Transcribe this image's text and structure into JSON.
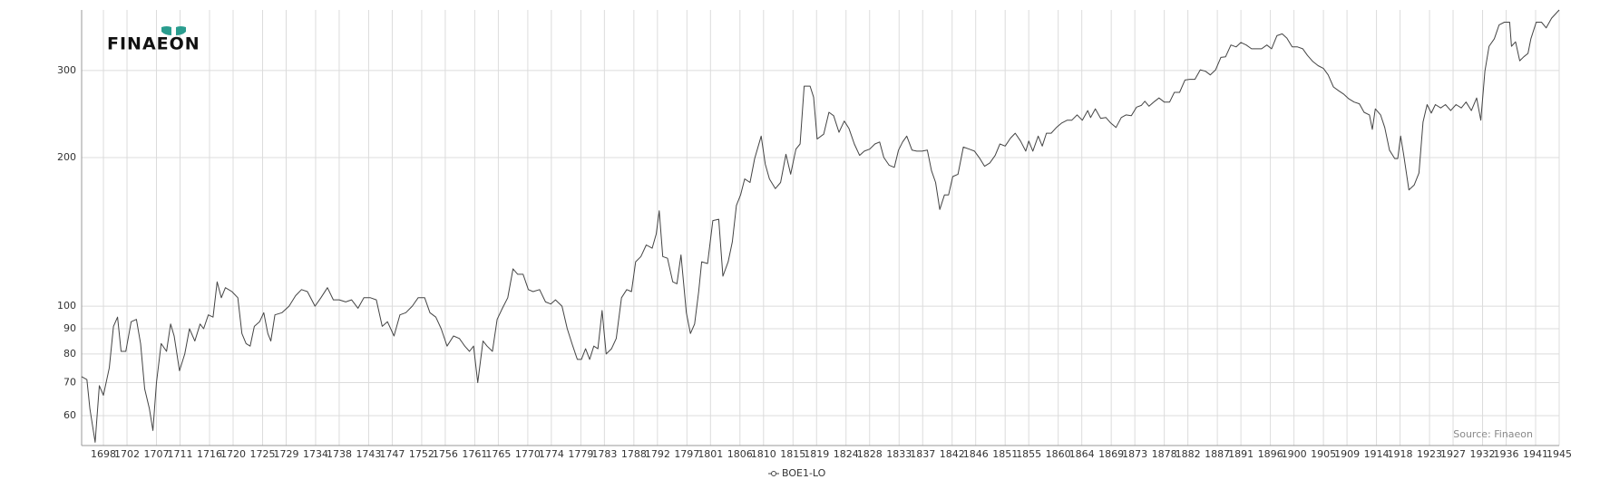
{
  "chart_data": {
    "type": "line",
    "logo": "FINAEON",
    "source": "Source: Finaeon",
    "log_y": true,
    "grid": true,
    "xlim": [
      1694.3,
      1945
    ],
    "ylim": [
      52.2,
      398
    ],
    "xticks": [
      1698,
      1702,
      1707,
      1711,
      1716,
      1720,
      1725,
      1729,
      1734,
      1738,
      1743,
      1747,
      1752,
      1756,
      1761,
      1765,
      1770,
      1774,
      1779,
      1783,
      1788,
      1792,
      1797,
      1801,
      1806,
      1810,
      1815,
      1819,
      1824,
      1828,
      1833,
      1837,
      1842,
      1846,
      1851,
      1855,
      1860,
      1864,
      1869,
      1873,
      1878,
      1882,
      1887,
      1891,
      1896,
      1900,
      1905,
      1909,
      1914,
      1918,
      1923,
      1927,
      1932,
      1936,
      1941,
      1945
    ],
    "yticks": [
      60,
      70,
      80,
      90,
      100,
      200,
      300
    ],
    "x": [
      1694.3,
      1695.2,
      1695.7,
      1696.6,
      1697.3,
      1698,
      1699,
      1699.7,
      1700.4,
      1701,
      1701.8,
      1702.7,
      1703.6,
      1704.3,
      1705,
      1705.8,
      1706.4,
      1707,
      1707.8,
      1708.7,
      1709.4,
      1710,
      1710.9,
      1711.8,
      1712.6,
      1713.5,
      1714.4,
      1715,
      1715.8,
      1716.6,
      1717.3,
      1718,
      1718.7,
      1719.8,
      1720.8,
      1721.5,
      1722.2,
      1722.9,
      1723.6,
      1724.5,
      1725.2,
      1725.9,
      1726.4,
      1727.1,
      1728.3,
      1729.5,
      1730.6,
      1731.6,
      1732.6,
      1733.9,
      1734.9,
      1736,
      1737,
      1738,
      1739.1,
      1740.1,
      1741.2,
      1742.2,
      1743.3,
      1744.3,
      1745.3,
      1746.2,
      1747.3,
      1748.3,
      1749.3,
      1750.4,
      1751.4,
      1752.5,
      1753.4,
      1754.4,
      1755.3,
      1756.3,
      1757.4,
      1758.4,
      1759.3,
      1760.1,
      1760.8,
      1761.5,
      1762.4,
      1763.1,
      1764,
      1764.8,
      1765.7,
      1766.6,
      1767.5,
      1768.3,
      1769.2,
      1770.1,
      1770.9,
      1772,
      1773,
      1773.9,
      1774.7,
      1775.8,
      1776.7,
      1777.5,
      1778.4,
      1779.1,
      1779.8,
      1780.5,
      1781.2,
      1781.9,
      1782.6,
      1783.3,
      1784.2,
      1785,
      1785.9,
      1786.8,
      1787.6,
      1788.3,
      1789.2,
      1790.1,
      1791.1,
      1791.8,
      1792.3,
      1792.9,
      1793.7,
      1794.6,
      1795.3,
      1796,
      1796.9,
      1797.6,
      1798.3,
      1799,
      1799.5,
      1800.5,
      1801.4,
      1802.4,
      1803.1,
      1804,
      1804.7,
      1805.4,
      1806.1,
      1806.8,
      1807.7,
      1808.5,
      1809.6,
      1810.3,
      1811,
      1812,
      1812.9,
      1813.8,
      1814.6,
      1815.5,
      1816.2,
      1816.9,
      1817.9,
      1818.5,
      1819.1,
      1820.2,
      1821.1,
      1821.9,
      1822.8,
      1823.7,
      1824.5,
      1825.4,
      1826.3,
      1827.1,
      1828,
      1828.9,
      1829.7,
      1830.4,
      1831.3,
      1832.2,
      1832.9,
      1833.6,
      1834.3,
      1835.2,
      1836,
      1836.9,
      1837.8,
      1838.5,
      1839.2,
      1839.9,
      1840.7,
      1841.4,
      1842.1,
      1843,
      1843.9,
      1844.9,
      1845.8,
      1846.7,
      1847.5,
      1848.4,
      1849.3,
      1850.1,
      1851,
      1851.9,
      1852.7,
      1853.6,
      1854.5,
      1855,
      1855.7,
      1856.6,
      1857.3,
      1858,
      1858.8,
      1859.7,
      1860.6,
      1861.5,
      1862.3,
      1863.2,
      1864.1,
      1865,
      1865.5,
      1866.3,
      1867.2,
      1868.1,
      1868.9,
      1869.8,
      1870.7,
      1871.5,
      1872.4,
      1873.3,
      1874.1,
      1874.7,
      1875.4,
      1876.2,
      1877.1,
      1878,
      1878.9,
      1879.7,
      1880.6,
      1881.5,
      1882.3,
      1883.2,
      1884.1,
      1885,
      1885.8,
      1886.7,
      1887.6,
      1888.4,
      1889.3,
      1890.2,
      1891,
      1891.9,
      1892.8,
      1893.6,
      1894.5,
      1895.4,
      1896.2,
      1897.1,
      1898,
      1898.8,
      1899.7,
      1900.6,
      1901.5,
      1902.3,
      1903.2,
      1904.1,
      1905,
      1905.8,
      1906.7,
      1907.6,
      1908.4,
      1909.3,
      1910.2,
      1911.1,
      1911.9,
      1912.8,
      1913.3,
      1913.8,
      1914.7,
      1915.4,
      1916.2,
      1917.1,
      1917.6,
      1918.1,
      1918.6,
      1919.5,
      1920.4,
      1921.2,
      1921.9,
      1922.6,
      1923.3,
      1924,
      1924.9,
      1925.7,
      1926.6,
      1927.5,
      1928.4,
      1929.2,
      1930.1,
      1931,
      1931.7,
      1932.4,
      1933.1,
      1934,
      1934.8,
      1935.7,
      1936.6,
      1936.9,
      1937.6,
      1938.3,
      1939,
      1939.7,
      1940.2,
      1941.1,
      1942,
      1942.8,
      1943.7,
      1945
    ],
    "series": [
      {
        "name": "BOE1-LO",
        "color": "#444444",
        "values": [
          72,
          71,
          62,
          53,
          69,
          66,
          75,
          91,
          95,
          81,
          81,
          93,
          94,
          84,
          68,
          62,
          56,
          70,
          84,
          81,
          92,
          87,
          74,
          80,
          90,
          85,
          92,
          90,
          96,
          95,
          112,
          104,
          109,
          107,
          104,
          88,
          84,
          83,
          91,
          93,
          97,
          88,
          85,
          96,
          97,
          100,
          105,
          108,
          107,
          100,
          104,
          109,
          103,
          103,
          102,
          103,
          99,
          104,
          104,
          103,
          91,
          93,
          87,
          96,
          97,
          100,
          104,
          104,
          97,
          95,
          90,
          83,
          87,
          86,
          83,
          81,
          83,
          70,
          85,
          83,
          81,
          94,
          99,
          104,
          119,
          116,
          116,
          108,
          107,
          108,
          102,
          101,
          103,
          100,
          90,
          84,
          78,
          78,
          82,
          78,
          83,
          82,
          98,
          80,
          82,
          86,
          104,
          108,
          107,
          123,
          126,
          133,
          131,
          140,
          156,
          126,
          125,
          112,
          111,
          127,
          97,
          88,
          92,
          107,
          123,
          122,
          149,
          150,
          115,
          123,
          135,
          160,
          168,
          181,
          178,
          199,
          221,
          194,
          181,
          173,
          178,
          203,
          185,
          208,
          213,
          279,
          279,
          265,
          218,
          223,
          247,
          243,
          225,
          237,
          229,
          213,
          202,
          206,
          208,
          213,
          215,
          200,
          193,
          191,
          207,
          215,
          221,
          207,
          206,
          206,
          207,
          188,
          178,
          157,
          168,
          168,
          183,
          185,
          210,
          208,
          206,
          199,
          192,
          195,
          202,
          213,
          211,
          219,
          224,
          216,
          206,
          216,
          206,
          221,
          211,
          224,
          224,
          230,
          235,
          238,
          238,
          244,
          238,
          249,
          241,
          251,
          240,
          241,
          235,
          230,
          241,
          244,
          243,
          253,
          255,
          260,
          254,
          259,
          264,
          259,
          259,
          271,
          271,
          287,
          288,
          288,
          301,
          299,
          294,
          301,
          319,
          320,
          338,
          335,
          342,
          338,
          332,
          332,
          332,
          338,
          332,
          353,
          356,
          349,
          335,
          335,
          332,
          322,
          313,
          307,
          303,
          294,
          278,
          273,
          269,
          263,
          259,
          257,
          247,
          244,
          228,
          251,
          244,
          230,
          207,
          199,
          199,
          221,
          203,
          172,
          176,
          186,
          236,
          256,
          246,
          256,
          252,
          256,
          249,
          256,
          252,
          259,
          249,
          264,
          238,
          299,
          336,
          348,
          371,
          376,
          376,
          336,
          343,
          314,
          320,
          325,
          348,
          376,
          376,
          366,
          383,
          398
        ]
      }
    ]
  }
}
